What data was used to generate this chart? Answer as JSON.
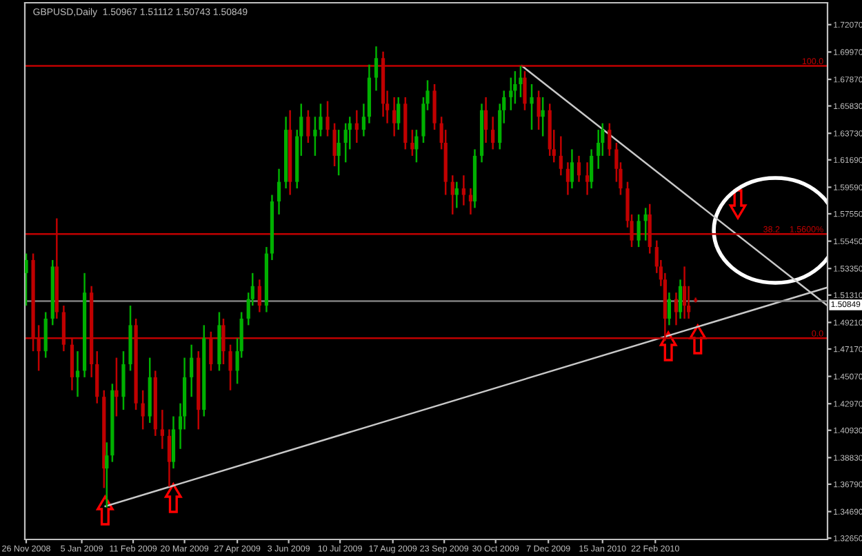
{
  "chart_data": {
    "type": "candlestick",
    "title": "GBPUSD,Daily  1.50967 1.51112 1.50743 1.50849",
    "x": [
      "2008-11-26",
      "2008-12-01",
      "2008-12-05",
      "2008-12-10",
      "2008-12-15",
      "2008-12-18",
      "2008-12-23",
      "2008-12-29",
      "2009-01-02",
      "2009-01-07",
      "2009-01-12",
      "2009-01-16",
      "2009-01-21",
      "2009-01-23",
      "2009-01-27",
      "2009-01-30",
      "2009-02-04",
      "2009-02-09",
      "2009-02-13",
      "2009-02-18",
      "2009-02-23",
      "2009-02-27",
      "2009-03-04",
      "2009-03-09",
      "2009-03-12",
      "2009-03-17",
      "2009-03-20",
      "2009-03-25",
      "2009-03-30",
      "2009-04-03",
      "2009-04-08",
      "2009-04-14",
      "2009-04-17",
      "2009-04-22",
      "2009-04-27",
      "2009-04-30",
      "2009-05-05",
      "2009-05-08",
      "2009-05-13",
      "2009-05-18",
      "2009-05-22",
      "2009-05-27",
      "2009-06-01",
      "2009-06-04",
      "2009-06-09",
      "2009-06-12",
      "2009-06-17",
      "2009-06-22",
      "2009-06-26",
      "2009-07-01",
      "2009-07-06",
      "2009-07-09",
      "2009-07-14",
      "2009-07-17",
      "2009-07-22",
      "2009-07-27",
      "2009-07-31",
      "2009-08-05",
      "2009-08-10",
      "2009-08-13",
      "2009-08-18",
      "2009-08-21",
      "2009-08-26",
      "2009-08-31",
      "2009-09-03",
      "2009-09-08",
      "2009-09-11",
      "2009-09-16",
      "2009-09-21",
      "2009-09-24",
      "2009-09-29",
      "2009-10-02",
      "2009-10-07",
      "2009-10-12",
      "2009-10-15",
      "2009-10-20",
      "2009-10-23",
      "2009-10-28",
      "2009-11-02",
      "2009-11-05",
      "2009-11-10",
      "2009-11-13",
      "2009-11-17",
      "2009-11-20",
      "2009-11-25",
      "2009-11-30",
      "2009-12-03",
      "2009-12-08",
      "2009-12-11",
      "2009-12-16",
      "2009-12-21",
      "2009-12-24",
      "2009-12-29",
      "2010-01-04",
      "2010-01-07",
      "2010-01-12",
      "2010-01-15",
      "2010-01-20",
      "2010-01-25",
      "2010-01-28",
      "2010-02-02",
      "2010-02-05",
      "2010-02-10",
      "2010-02-15",
      "2010-02-18",
      "2010-02-23",
      "2010-02-26",
      "2010-03-01",
      "2010-03-04",
      "2010-03-09",
      "2010-03-12",
      "2010-03-15",
      "2010-03-18",
      "2010-03-23"
    ],
    "ohlc": [
      [
        1.53,
        1.545,
        1.505,
        1.54
      ],
      [
        1.54,
        1.545,
        1.47,
        1.48
      ],
      [
        1.48,
        1.49,
        1.455,
        1.47
      ],
      [
        1.47,
        1.5,
        1.465,
        1.495
      ],
      [
        1.495,
        1.54,
        1.49,
        1.535
      ],
      [
        1.535,
        1.572,
        1.495,
        1.5
      ],
      [
        1.5,
        1.505,
        1.47,
        1.475
      ],
      [
        1.475,
        1.48,
        1.44,
        1.45
      ],
      [
        1.45,
        1.47,
        1.435,
        1.455
      ],
      [
        1.455,
        1.53,
        1.45,
        1.515
      ],
      [
        1.515,
        1.52,
        1.45,
        1.46
      ],
      [
        1.46,
        1.47,
        1.43,
        1.435
      ],
      [
        1.435,
        1.44,
        1.365,
        1.38
      ],
      [
        1.38,
        1.4,
        1.35,
        1.39
      ],
      [
        1.39,
        1.445,
        1.385,
        1.44
      ],
      [
        1.44,
        1.465,
        1.42,
        1.435
      ],
      [
        1.435,
        1.47,
        1.425,
        1.46
      ],
      [
        1.46,
        1.505,
        1.455,
        1.49
      ],
      [
        1.49,
        1.495,
        1.425,
        1.43
      ],
      [
        1.43,
        1.44,
        1.41,
        1.42
      ],
      [
        1.42,
        1.465,
        1.415,
        1.45
      ],
      [
        1.45,
        1.455,
        1.405,
        1.41
      ],
      [
        1.41,
        1.425,
        1.395,
        1.405
      ],
      [
        1.405,
        1.41,
        1.366,
        1.385
      ],
      [
        1.385,
        1.42,
        1.38,
        1.41
      ],
      [
        1.41,
        1.43,
        1.395,
        1.42
      ],
      [
        1.42,
        1.465,
        1.41,
        1.45
      ],
      [
        1.45,
        1.475,
        1.435,
        1.465
      ],
      [
        1.465,
        1.47,
        1.41,
        1.425
      ],
      [
        1.425,
        1.49,
        1.42,
        1.48
      ],
      [
        1.48,
        1.485,
        1.455,
        1.46
      ],
      [
        1.46,
        1.5,
        1.455,
        1.49
      ],
      [
        1.49,
        1.495,
        1.46,
        1.47
      ],
      [
        1.47,
        1.475,
        1.44,
        1.455
      ],
      [
        1.455,
        1.48,
        1.445,
        1.47
      ],
      [
        1.47,
        1.5,
        1.465,
        1.495
      ],
      [
        1.495,
        1.515,
        1.49,
        1.51
      ],
      [
        1.51,
        1.53,
        1.505,
        1.52
      ],
      [
        1.52,
        1.525,
        1.5,
        1.505
      ],
      [
        1.505,
        1.55,
        1.5,
        1.545
      ],
      [
        1.545,
        1.59,
        1.54,
        1.585
      ],
      [
        1.585,
        1.61,
        1.575,
        1.6
      ],
      [
        1.6,
        1.65,
        1.595,
        1.64
      ],
      [
        1.64,
        1.655,
        1.59,
        1.6
      ],
      [
        1.6,
        1.64,
        1.595,
        1.635
      ],
      [
        1.635,
        1.66,
        1.62,
        1.65
      ],
      [
        1.65,
        1.655,
        1.63,
        1.635
      ],
      [
        1.635,
        1.65,
        1.62,
        1.64
      ],
      [
        1.64,
        1.66,
        1.635,
        1.65
      ],
      [
        1.65,
        1.662,
        1.635,
        1.64
      ],
      [
        1.64,
        1.645,
        1.612,
        1.62
      ],
      [
        1.62,
        1.64,
        1.605,
        1.63
      ],
      [
        1.63,
        1.645,
        1.615,
        1.64
      ],
      [
        1.64,
        1.65,
        1.625,
        1.645
      ],
      [
        1.645,
        1.655,
        1.63,
        1.64
      ],
      [
        1.64,
        1.66,
        1.635,
        1.65
      ],
      [
        1.65,
        1.69,
        1.645,
        1.68
      ],
      [
        1.68,
        1.704,
        1.67,
        1.695
      ],
      [
        1.695,
        1.7,
        1.65,
        1.66
      ],
      [
        1.66,
        1.67,
        1.645,
        1.655
      ],
      [
        1.655,
        1.665,
        1.635,
        1.645
      ],
      [
        1.645,
        1.665,
        1.64,
        1.66
      ],
      [
        1.66,
        1.665,
        1.625,
        1.63
      ],
      [
        1.63,
        1.64,
        1.62,
        1.625
      ],
      [
        1.625,
        1.64,
        1.615,
        1.635
      ],
      [
        1.635,
        1.665,
        1.63,
        1.66
      ],
      [
        1.66,
        1.678,
        1.655,
        1.67
      ],
      [
        1.67,
        1.675,
        1.64,
        1.645
      ],
      [
        1.645,
        1.65,
        1.625,
        1.63
      ],
      [
        1.63,
        1.64,
        1.59,
        1.6
      ],
      [
        1.6,
        1.605,
        1.575,
        1.59
      ],
      [
        1.59,
        1.6,
        1.58,
        1.595
      ],
      [
        1.595,
        1.605,
        1.582,
        1.59
      ],
      [
        1.59,
        1.595,
        1.575,
        1.585
      ],
      [
        1.585,
        1.625,
        1.58,
        1.62
      ],
      [
        1.62,
        1.66,
        1.615,
        1.655
      ],
      [
        1.655,
        1.665,
        1.63,
        1.64
      ],
      [
        1.64,
        1.65,
        1.625,
        1.63
      ],
      [
        1.63,
        1.66,
        1.625,
        1.655
      ],
      [
        1.655,
        1.67,
        1.645,
        1.665
      ],
      [
        1.665,
        1.68,
        1.655,
        1.67
      ],
      [
        1.67,
        1.685,
        1.66,
        1.675
      ],
      [
        1.675,
        1.689,
        1.665,
        1.68
      ],
      [
        1.68,
        1.685,
        1.655,
        1.66
      ],
      [
        1.66,
        1.675,
        1.64,
        1.665
      ],
      [
        1.665,
        1.67,
        1.64,
        1.65
      ],
      [
        1.65,
        1.665,
        1.635,
        1.655
      ],
      [
        1.655,
        1.66,
        1.62,
        1.625
      ],
      [
        1.625,
        1.64,
        1.615,
        1.62
      ],
      [
        1.62,
        1.635,
        1.605,
        1.61
      ],
      [
        1.61,
        1.615,
        1.59,
        1.6
      ],
      [
        1.6,
        1.625,
        1.595,
        1.615
      ],
      [
        1.615,
        1.62,
        1.6,
        1.605
      ],
      [
        1.605,
        1.615,
        1.59,
        1.6
      ],
      [
        1.6,
        1.625,
        1.595,
        1.62
      ],
      [
        1.62,
        1.64,
        1.61,
        1.63
      ],
      [
        1.63,
        1.645,
        1.62,
        1.64
      ],
      [
        1.64,
        1.645,
        1.62,
        1.625
      ],
      [
        1.625,
        1.63,
        1.6,
        1.61
      ],
      [
        1.61,
        1.615,
        1.59,
        1.595
      ],
      [
        1.595,
        1.6,
        1.565,
        1.57
      ],
      [
        1.57,
        1.575,
        1.55,
        1.555
      ],
      [
        1.555,
        1.575,
        1.55,
        1.57
      ],
      [
        1.57,
        1.58,
        1.555,
        1.575
      ],
      [
        1.575,
        1.583,
        1.545,
        1.55
      ],
      [
        1.55,
        1.555,
        1.53,
        1.535
      ],
      [
        1.535,
        1.54,
        1.52,
        1.525
      ],
      [
        1.525,
        1.53,
        1.478,
        1.495
      ],
      [
        1.495,
        1.515,
        1.49,
        1.51
      ],
      [
        1.51,
        1.515,
        1.49,
        1.5
      ],
      [
        1.5,
        1.525,
        1.495,
        1.52
      ],
      [
        1.52,
        1.535,
        1.495,
        1.505
      ],
      [
        1.505,
        1.52,
        1.495,
        1.5
      ],
      [
        1.50967,
        1.51112,
        1.50743,
        1.50849
      ]
    ],
    "colors": [
      "#00b000",
      "#c00000",
      "#c00000",
      "#00b000",
      "#00b000",
      "#c00000",
      "#c00000",
      "#c00000",
      "#00b000",
      "#00b000",
      "#c00000",
      "#c00000",
      "#c00000",
      "#00b000",
      "#00b000",
      "#c00000",
      "#00b000",
      "#00b000",
      "#c00000",
      "#c00000",
      "#00b000",
      "#c00000",
      "#c00000",
      "#c00000",
      "#00b000",
      "#00b000",
      "#00b000",
      "#00b000",
      "#c00000",
      "#00b000",
      "#c00000",
      "#00b000",
      "#c00000",
      "#c00000",
      "#00b000",
      "#00b000",
      "#00b000",
      "#00b000",
      "#c00000",
      "#00b000",
      "#00b000",
      "#00b000",
      "#00b000",
      "#c00000",
      "#00b000",
      "#00b000",
      "#c00000",
      "#00b000",
      "#00b000",
      "#c00000",
      "#c00000",
      "#00b000",
      "#00b000",
      "#00b000",
      "#c00000",
      "#00b000",
      "#00b000",
      "#00b000",
      "#c00000",
      "#c00000",
      "#c00000",
      "#00b000",
      "#c00000",
      "#c00000",
      "#00b000",
      "#00b000",
      "#00b000",
      "#c00000",
      "#c00000",
      "#c00000",
      "#c00000",
      "#00b000",
      "#c00000",
      "#c00000",
      "#00b000",
      "#00b000",
      "#c00000",
      "#c00000",
      "#00b000",
      "#00b000",
      "#00b000",
      "#00b000",
      "#00b000",
      "#c00000",
      "#00b000",
      "#c00000",
      "#00b000",
      "#c00000",
      "#c00000",
      "#c00000",
      "#c00000",
      "#00b000",
      "#c00000",
      "#c00000",
      "#00b000",
      "#00b000",
      "#00b000",
      "#c00000",
      "#c00000",
      "#c00000",
      "#c00000",
      "#c00000",
      "#00b000",
      "#00b000",
      "#c00000",
      "#c00000",
      "#c00000",
      "#c00000",
      "#00b000",
      "#c00000",
      "#00b000",
      "#c00000",
      "#c00000",
      "#c00000"
    ],
    "series": [
      {
        "type": "line",
        "color": "#c8c8c8",
        "x": [
          "2009-01-22",
          "2010-06-26"
        ],
        "values": [
          1.351,
          1.519
        ]
      },
      {
        "type": "line",
        "color": "#c8c8c8",
        "x": [
          "2009-11-18",
          "2010-06-26"
        ],
        "values": [
          1.689,
          1.505
        ]
      }
    ],
    "annotations": [
      "100.0",
      "38.2    1.5600%",
      "0.0"
    ],
    "ref_lines": [
      {
        "axis": "y",
        "value": 1.689,
        "label": null,
        "color": "#c00000"
      },
      {
        "axis": "y",
        "value": 1.56,
        "label": null,
        "color": "#c00000"
      },
      {
        "axis": "y",
        "value": 1.48,
        "label": null,
        "color": "#c00000"
      },
      {
        "axis": "y",
        "value": 1.50849,
        "label": "1.50849",
        "color": "#808080"
      }
    ],
    "xlim": [
      "2008-11-25",
      "2010-06-26"
    ],
    "xticks": [
      {
        "value": "2008-11-26",
        "label": "26 Nov 2008"
      },
      {
        "value": "2009-01-05",
        "label": "5 Jan 2009"
      },
      {
        "value": "2009-02-11",
        "label": "11 Feb 2009"
      },
      {
        "value": "2009-03-20",
        "label": "20 Mar 2009"
      },
      {
        "value": "2009-04-27",
        "label": "27 Apr 2009"
      },
      {
        "value": "2009-06-03",
        "label": "3 Jun 2009"
      },
      {
        "value": "2009-07-10",
        "label": "10 Jul 2009"
      },
      {
        "value": "2009-08-17",
        "label": "17 Aug 2009"
      },
      {
        "value": "2009-09-23",
        "label": "23 Sep 2009"
      },
      {
        "value": "2009-10-30",
        "label": "30 Oct 2009"
      },
      {
        "value": "2009-12-07",
        "label": "7 Dec 2009"
      },
      {
        "value": "2010-01-15",
        "label": "15 Jan 2010"
      },
      {
        "value": "2010-02-22",
        "label": "22 Feb 2010"
      }
    ],
    "ylim": [
      1.3255,
      1.7375
    ],
    "yticks": [
      {
        "value": 1.7207,
        "label": "1.72070"
      },
      {
        "value": 1.6997,
        "label": "1.69970"
      },
      {
        "value": 1.6787,
        "label": "1.67870"
      },
      {
        "value": 1.6583,
        "label": "1.65830"
      },
      {
        "value": 1.6373,
        "label": "1.63730"
      },
      {
        "value": 1.6169,
        "label": "1.61690"
      },
      {
        "value": 1.5959,
        "label": "1.59590"
      },
      {
        "value": 1.5755,
        "label": "1.57550"
      },
      {
        "value": 1.5545,
        "label": "1.55450"
      },
      {
        "value": 1.5335,
        "label": "1.53350"
      },
      {
        "value": 1.5131,
        "label": "1.51310"
      },
      {
        "value": 1.4921,
        "label": "1.49210"
      },
      {
        "value": 1.4717,
        "label": "1.47170"
      },
      {
        "value": 1.4507,
        "label": "1.45070"
      },
      {
        "value": 1.4297,
        "label": "1.42970"
      },
      {
        "value": 1.4093,
        "label": "1.40930"
      },
      {
        "value": 1.3883,
        "label": "1.38830"
      },
      {
        "value": 1.3679,
        "label": "1.36790"
      },
      {
        "value": 1.3469,
        "label": "1.34690"
      },
      {
        "value": 1.3265,
        "label": "1.32650"
      }
    ],
    "grid": false
  }
}
